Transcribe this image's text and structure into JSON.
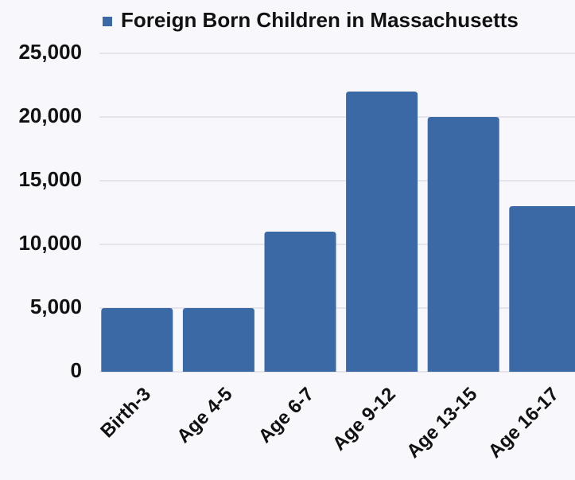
{
  "chart_data": {
    "type": "bar",
    "categories": [
      "Birth-3",
      "Age 4-5",
      "Age 6-7",
      "Age 9-12",
      "Age 13-15",
      "Age 16-17"
    ],
    "series": [
      {
        "name": "Foreign Born Children in Massachusetts",
        "color": "#3a69a5",
        "values": [
          5000,
          5000,
          11000,
          22000,
          20000,
          13000
        ]
      }
    ],
    "ylim": [
      0,
      25000
    ],
    "yticks": [
      0,
      {
        "value": 5000,
        "label": "5,000"
      },
      {
        "value": 10000,
        "label": "10,000"
      },
      {
        "value": 15000,
        "label": "15,000"
      },
      {
        "value": 20000,
        "label": "20,000"
      },
      {
        "value": 25000,
        "label": "25,000"
      }
    ],
    "grid": true,
    "legend": "top"
  }
}
